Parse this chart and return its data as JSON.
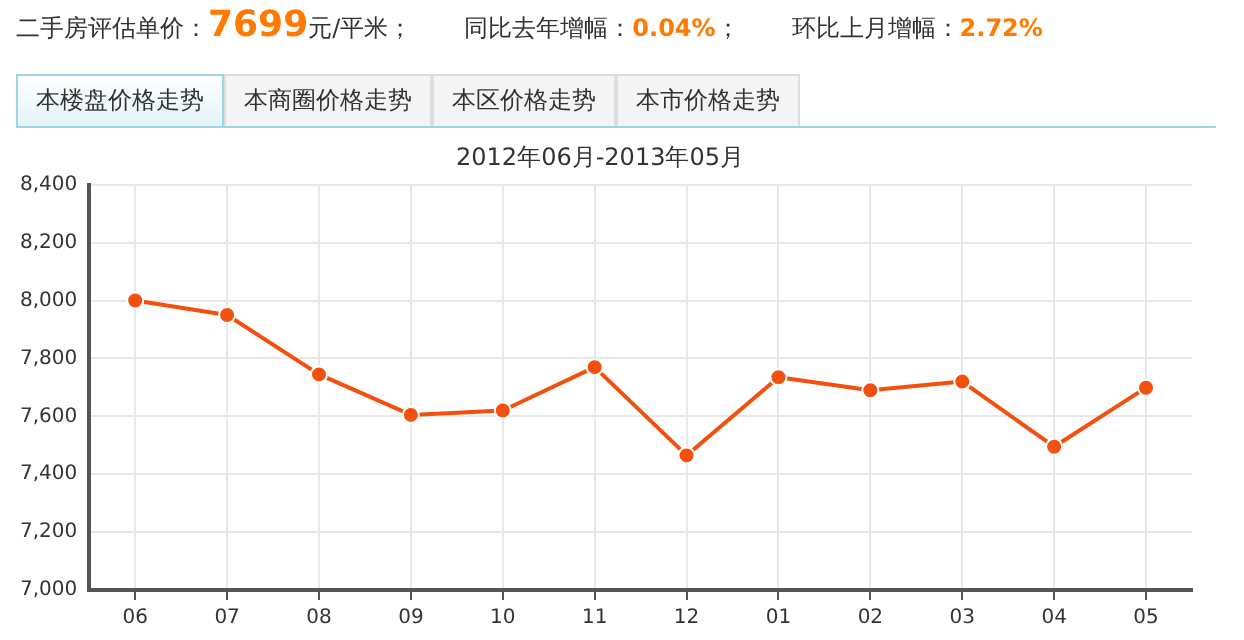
{
  "chart_data": {
    "type": "line",
    "title": "2012年06月-2013年05月",
    "categories": [
      "06",
      "07",
      "08",
      "09",
      "10",
      "11",
      "12",
      "01",
      "02",
      "03",
      "04",
      "05"
    ],
    "series": [
      {
        "color": "#f2500f",
        "values": [
          8000,
          7950,
          7745,
          7605,
          7620,
          7770,
          7465,
          7735,
          7690,
          7720,
          7495,
          7699
        ]
      }
    ],
    "ylim": [
      7000,
      8400
    ],
    "yticks": [
      {
        "value": 7000,
        "label": "7,000"
      },
      {
        "value": 7200,
        "label": "7,200"
      },
      {
        "value": 7400,
        "label": "7,400"
      },
      {
        "value": 7600,
        "label": "7,600"
      },
      {
        "value": 7800,
        "label": "7,800"
      },
      {
        "value": 8000,
        "label": "8,000"
      },
      {
        "value": 8200,
        "label": "8,200"
      },
      {
        "value": 8400,
        "label": "8,400"
      }
    ],
    "grid": true,
    "legend": false,
    "marker": "circle",
    "line_style": "solid",
    "annotations": [
      "二手房评估单价：7699元/平米；",
      "同比去年增幅：0.04%；",
      "环比上月增幅：2.72%",
      "本楼盘价格走势",
      "本商圈价格走势",
      "本区价格走势",
      "本市价格走势"
    ]
  }
}
